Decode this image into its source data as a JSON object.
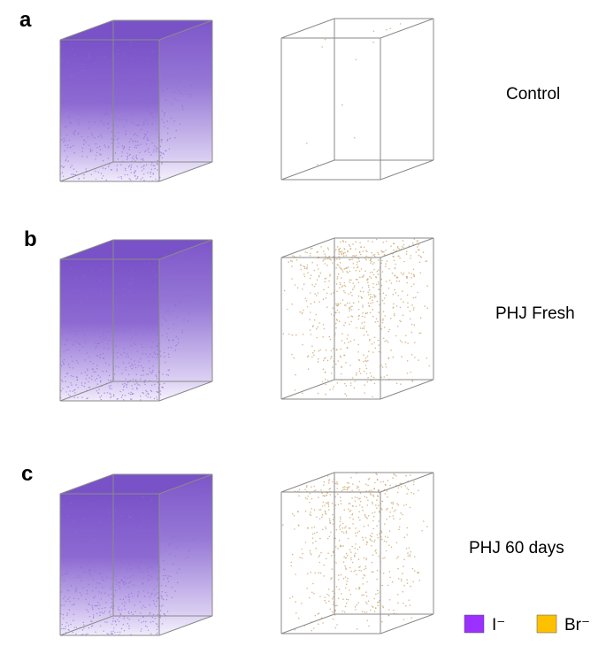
{
  "panels": [
    {
      "letter": "a",
      "label": "Control"
    },
    {
      "letter": "b",
      "label": "PHJ Fresh"
    },
    {
      "letter": "c",
      "label": "PHJ 60 days"
    }
  ],
  "legend": [
    {
      "label": "I⁻",
      "color": "#9b30ff"
    },
    {
      "label": "Br⁻",
      "color": "#ffc000"
    }
  ]
}
